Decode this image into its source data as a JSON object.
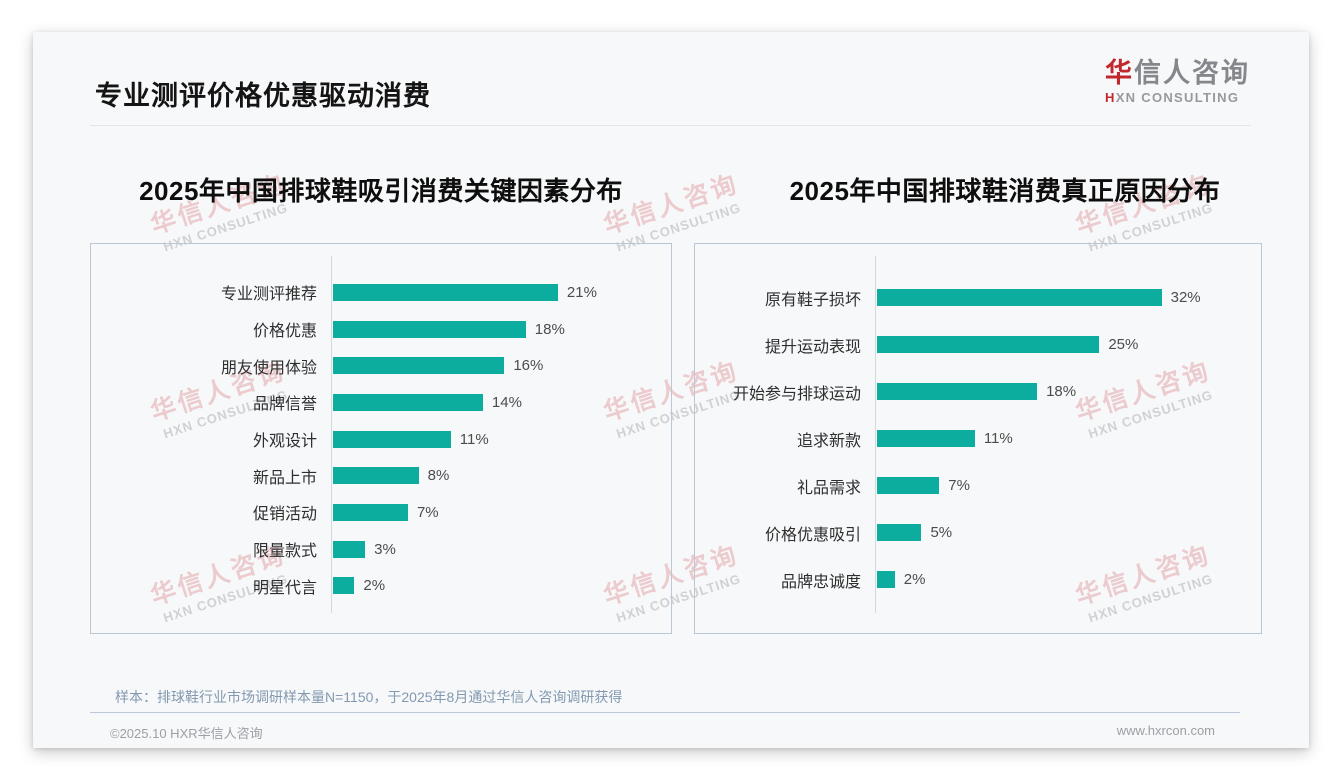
{
  "page": {
    "title": "专业测评价格优惠驱动消费"
  },
  "logo": {
    "zh_accent": "华",
    "zh_rest": "信人咨询",
    "en_accent": "H",
    "en_rest": "XN CONSULTING"
  },
  "watermark": {
    "zh": "华信人咨询",
    "en": "HXN CONSULTING"
  },
  "footer": {
    "note": "样本：排球鞋行业市场调研样本量N=1150，于2025年8月通过华信人咨询调研获得",
    "copyright": "©2025.10 HXR华信人咨询",
    "website": "www.hxrcon.com"
  },
  "colors": {
    "bar": "#0CAC9F",
    "logo_red": "#C3272E",
    "panel_border": "#BAC8D6",
    "note_blue": "#8299B0",
    "footer_gray": "#9BA0A5"
  },
  "chart_data": [
    {
      "type": "bar",
      "orientation": "horizontal",
      "title": "2025年中国排球鞋吸引消费关键因素分布",
      "categories": [
        "专业测评推荐",
        "价格优惠",
        "朋友使用体验",
        "品牌信誉",
        "外观设计",
        "新品上市",
        "促销活动",
        "限量款式",
        "明星代言"
      ],
      "values": [
        21,
        18,
        16,
        14,
        11,
        8,
        7,
        3,
        2
      ],
      "unit": "%",
      "xlim": [
        0,
        31
      ],
      "grid": false,
      "legend": false,
      "data_labels": true,
      "bar_color": "#0CAC9F"
    },
    {
      "type": "bar",
      "orientation": "horizontal",
      "title": "2025年中国排球鞋消费真正原因分布",
      "categories": [
        "原有鞋子损坏",
        "提升运动表现",
        "开始参与排球运动",
        "追求新款",
        "礼品需求",
        "价格优惠吸引",
        "品牌忠诚度"
      ],
      "values": [
        32,
        25,
        18,
        11,
        7,
        5,
        2
      ],
      "unit": "%",
      "xlim": [
        0,
        42.5
      ],
      "grid": false,
      "legend": false,
      "data_labels": true,
      "bar_color": "#0CAC9F"
    }
  ]
}
